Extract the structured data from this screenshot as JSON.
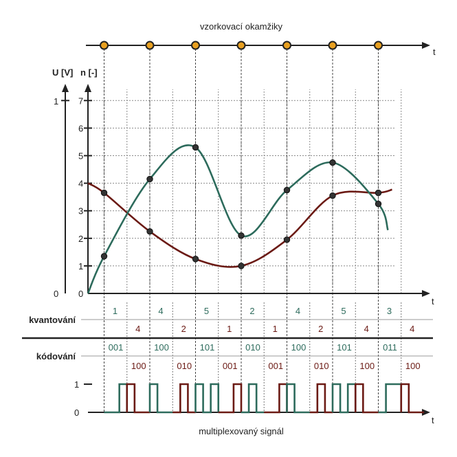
{
  "colors": {
    "green": "#2d6b5c",
    "red": "#6b1a14",
    "axis": "#222222",
    "grid": "#888888",
    "sample_fill": "#e8a020"
  },
  "timeline": {
    "title": "vzorkovací okamžiky",
    "t_label": "t",
    "sample_count": 7
  },
  "top_chart": {
    "u_axis_label": "U [V]",
    "n_axis_label": "n [-]",
    "u_ticks": [
      "0",
      "1"
    ],
    "n_ticks": [
      "1",
      "2",
      "3",
      "4",
      "5",
      "6",
      "7"
    ],
    "n_zero": "0",
    "t_label": "t"
  },
  "chart_data": {
    "type": "line",
    "y_range": [
      0,
      7
    ],
    "x": [
      1,
      2,
      3,
      4,
      5,
      6,
      7
    ],
    "series": [
      {
        "color": "green",
        "values": [
          1.35,
          4.15,
          5.3,
          2.1,
          3.75,
          4.75,
          3.25
        ]
      },
      {
        "color": "red",
        "values": [
          3.65,
          2.25,
          1.25,
          1.0,
          1.95,
          3.55,
          3.65
        ]
      }
    ]
  },
  "quantization": {
    "label": "kvantování",
    "top_row": [
      "1",
      "4",
      "5",
      "2",
      "4",
      "5",
      "3"
    ],
    "bottom_row": [
      "4",
      "2",
      "1",
      "1",
      "2",
      "4",
      "4"
    ]
  },
  "coding": {
    "label": "kódování",
    "top_row": [
      "001",
      "100",
      "101",
      "010",
      "100",
      "101",
      "011"
    ],
    "bottom_row": [
      "100",
      "010",
      "001",
      "001",
      "010",
      "100",
      "100"
    ]
  },
  "signal": {
    "title": "multiplexovaný signál",
    "level_one": "1",
    "level_zero": "0",
    "t_label": "t"
  }
}
